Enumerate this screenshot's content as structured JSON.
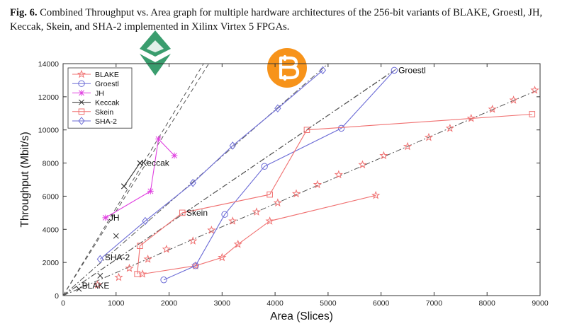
{
  "caption": {
    "label": "Fig. 6.",
    "text": "Combined Throughput vs. Area graph for multiple hardware architectures of the 256-bit variants of BLAKE, Groestl, JH, Keccak, Skein, and SHA-2 implemented in Xilinx Virtex 5 FPGAs."
  },
  "logos": [
    "ethereum-logo",
    "bitcoin-logo"
  ],
  "chart_data": {
    "type": "line",
    "xlabel": "Area (Slices)",
    "ylabel": "Throughput (Mbit/s)",
    "xlim": [
      0,
      9000
    ],
    "ylim": [
      0,
      14000
    ],
    "xticks": [
      0,
      1000,
      2000,
      3000,
      4000,
      5000,
      6000,
      7000,
      8000,
      9000
    ],
    "yticks": [
      0,
      2000,
      4000,
      6000,
      8000,
      10000,
      12000,
      14000
    ],
    "grid": false,
    "legend_position": "top-left",
    "series": [
      {
        "name": "BLAKE",
        "color": "#f07070",
        "marker": "star",
        "points": [
          [
            1500,
            1300
          ],
          [
            2500,
            1800
          ],
          [
            3000,
            2300
          ],
          [
            3300,
            3100
          ],
          [
            3900,
            4500
          ],
          [
            5900,
            6050
          ]
        ]
      },
      {
        "name": "Groestl",
        "color": "#6b6bd6",
        "marker": "circle",
        "points": [
          [
            1900,
            950
          ],
          [
            2500,
            1800
          ],
          [
            3050,
            4900
          ],
          [
            3800,
            7800
          ],
          [
            5250,
            10100
          ],
          [
            6250,
            13600
          ]
        ]
      },
      {
        "name": "JH",
        "color": "#e040e0",
        "marker": "asterisk",
        "points": [
          [
            800,
            4700
          ],
          [
            1650,
            6300
          ],
          [
            1800,
            9450
          ],
          [
            2100,
            8450
          ]
        ]
      },
      {
        "name": "Keccak",
        "color": "#333333",
        "marker": "x",
        "points": [
          [
            1150,
            6600
          ],
          [
            1450,
            8000
          ]
        ]
      },
      {
        "name": "Skein",
        "color": "#f07070",
        "marker": "square",
        "points": [
          [
            1400,
            1300
          ],
          [
            1450,
            3000
          ],
          [
            2250,
            5000
          ],
          [
            3900,
            6100
          ],
          [
            4600,
            10000
          ],
          [
            8850,
            10950
          ]
        ]
      },
      {
        "name": "SHA-2",
        "color": "#6b6bd6",
        "marker": "diamond",
        "points": [
          [
            700,
            2200
          ],
          [
            1550,
            4500
          ],
          [
            2450,
            6800
          ],
          [
            3200,
            9050
          ],
          [
            4050,
            11300
          ],
          [
            4900,
            13600
          ]
        ]
      }
    ],
    "reference_lines": [
      {
        "color": "#555555",
        "dash": "6,4",
        "points": [
          [
            0,
            0
          ],
          [
            2750,
            14000
          ]
        ]
      },
      {
        "color": "#555555",
        "dash": "6,4",
        "points": [
          [
            0,
            0
          ],
          [
            2650,
            14000
          ]
        ]
      },
      {
        "color": "#555555",
        "dash": "8,3,2,3",
        "points": [
          [
            0,
            0
          ],
          [
            5000,
            14000
          ]
        ]
      },
      {
        "color": "#555555",
        "dash": "8,3,2,3",
        "points": [
          [
            0,
            0
          ],
          [
            6200,
            13500
          ]
        ]
      },
      {
        "color": "#555555",
        "dash": "8,3,2,3",
        "points": [
          [
            0,
            0
          ],
          [
            6300,
            13700
          ]
        ]
      },
      {
        "color": "#555555",
        "dash": "8,3,2,3",
        "points": [
          [
            0,
            0
          ],
          [
            8950,
            12400
          ]
        ]
      }
    ],
    "ref_line_markers": [
      {
        "color": "#f07070",
        "marker": "star",
        "points": [
          [
            650,
            650
          ],
          [
            1050,
            1100
          ],
          [
            1250,
            1650
          ],
          [
            1600,
            2200
          ],
          [
            1950,
            2800
          ],
          [
            2450,
            3300
          ],
          [
            2800,
            3950
          ],
          [
            3200,
            4500
          ],
          [
            3650,
            5050
          ],
          [
            4050,
            5600
          ],
          [
            4400,
            6150
          ],
          [
            4800,
            6700
          ],
          [
            5200,
            7300
          ],
          [
            5650,
            7900
          ],
          [
            6050,
            8450
          ],
          [
            6500,
            9000
          ],
          [
            6900,
            9550
          ],
          [
            7300,
            10100
          ],
          [
            7700,
            10700
          ],
          [
            8100,
            11250
          ],
          [
            8500,
            11800
          ],
          [
            8900,
            12400
          ]
        ]
      },
      {
        "color": "#333333",
        "marker": "x",
        "points": [
          [
            300,
            400
          ],
          [
            700,
            1200
          ],
          [
            1000,
            3600
          ],
          [
            1150,
            6600
          ],
          [
            1450,
            8000
          ]
        ]
      }
    ],
    "annotations": [
      {
        "text": "BLAKE",
        "x": 330,
        "y": 600
      },
      {
        "text": "SHA-2",
        "x": 760,
        "y": 2300
      },
      {
        "text": "JH",
        "x": 840,
        "y": 4700
      },
      {
        "text": "Skein",
        "x": 2300,
        "y": 5000
      },
      {
        "text": "Keccak",
        "x": 1450,
        "y": 8000
      },
      {
        "text": "Groestl",
        "x": 6300,
        "y": 13600
      }
    ]
  }
}
